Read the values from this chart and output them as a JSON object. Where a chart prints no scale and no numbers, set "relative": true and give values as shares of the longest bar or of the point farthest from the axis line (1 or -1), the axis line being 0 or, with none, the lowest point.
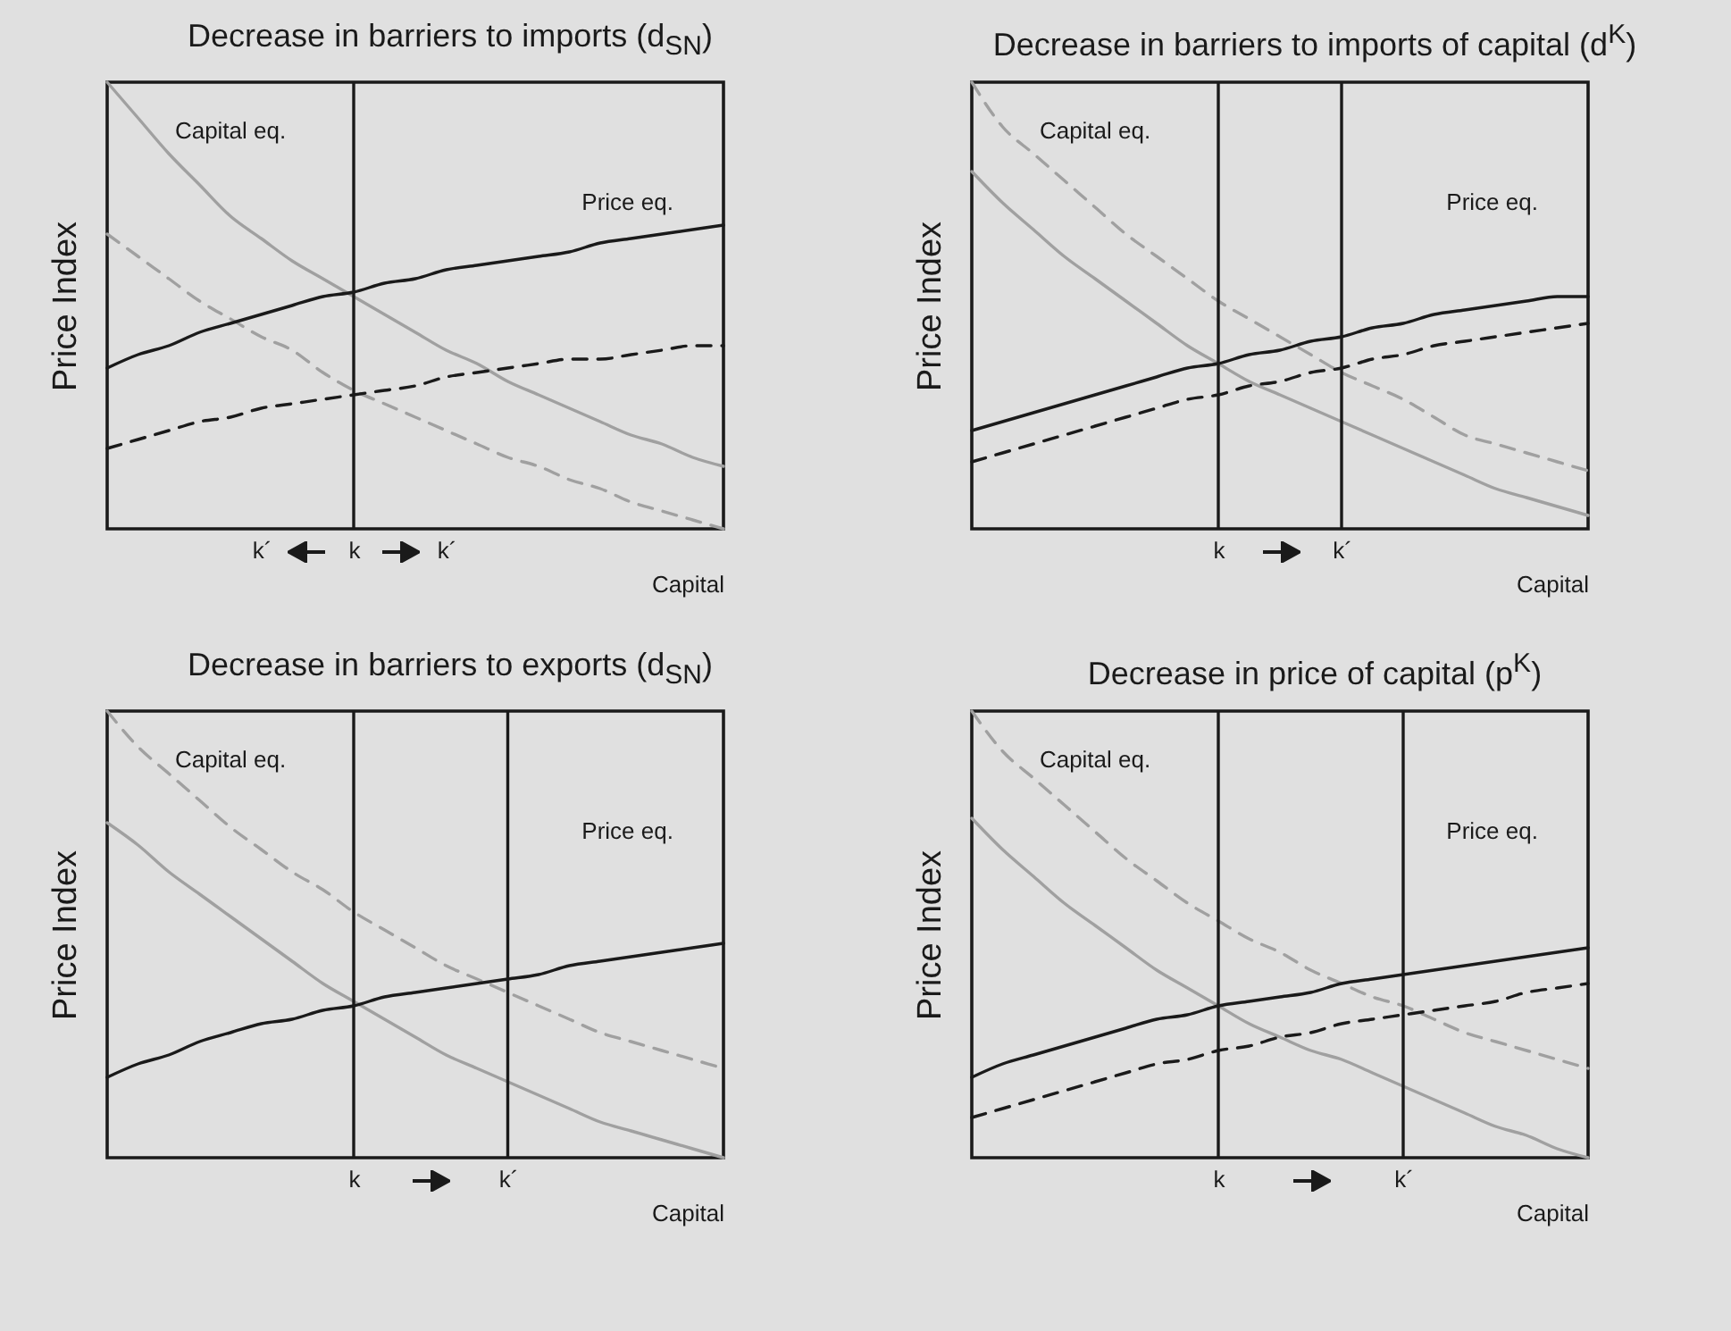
{
  "chart_data": [
    {
      "type": "line",
      "title": "Decrease in barriers to imports (d$_{SN}$)",
      "xlabel": "Capital",
      "ylabel": "Price Index",
      "relative": true,
      "tick_labels": "x",
      "categories": [
        null,
        null,
        null,
        null,
        null,
        "k´",
        null,
        null,
        "k",
        null,
        null,
        "k´",
        null,
        null,
        null,
        null,
        null,
        null,
        null,
        null,
        null
      ],
      "series": [
        {
          "color": "#a0a0a0",
          "line_style": "solid",
          "values": [
            1.0,
            0.92,
            0.84,
            0.77,
            0.7,
            0.65,
            0.6,
            0.56,
            0.52,
            0.48,
            0.44,
            0.4,
            0.37,
            0.33,
            0.3,
            0.27,
            0.24,
            0.21,
            0.19,
            0.16,
            0.14
          ]
        },
        {
          "color": "#a0a0a0",
          "line_style": "dashed",
          "values": [
            0.66,
            0.61,
            0.56,
            0.51,
            0.47,
            0.43,
            0.4,
            0.35,
            0.31,
            0.28,
            0.25,
            0.22,
            0.19,
            0.16,
            0.14,
            0.11,
            0.09,
            0.06,
            0.04,
            0.02,
            0.0
          ]
        },
        {
          "color": "#1a1a1a",
          "line_style": "solid",
          "values": [
            0.36,
            0.39,
            0.41,
            0.44,
            0.46,
            0.48,
            0.5,
            0.52,
            0.53,
            0.55,
            0.56,
            0.58,
            0.59,
            0.6,
            0.61,
            0.62,
            0.64,
            0.65,
            0.66,
            0.67,
            0.68
          ]
        },
        {
          "color": "#1a1a1a",
          "line_style": "dashed",
          "values": [
            0.18,
            0.2,
            0.22,
            0.24,
            0.25,
            0.27,
            0.28,
            0.29,
            0.3,
            0.31,
            0.32,
            0.34,
            0.35,
            0.36,
            0.37,
            0.38,
            0.38,
            0.39,
            0.4,
            0.41,
            0.41
          ]
        }
      ],
      "ref_lines": [
        {
          "axis": "x",
          "value": "k",
          "color": "#1a1a1a"
        }
      ],
      "annotations": [
        "Capital eq.",
        "Price eq."
      ]
    },
    {
      "type": "line",
      "title": "Decrease in barriers to imports of capital (d$^{K}$)",
      "xlabel": "Capital",
      "ylabel": "Price Index",
      "relative": true,
      "tick_labels": "x",
      "categories": [
        null,
        null,
        null,
        null,
        null,
        null,
        null,
        null,
        "k",
        null,
        null,
        null,
        "k´",
        null,
        null,
        null,
        null,
        null,
        null,
        null,
        null
      ],
      "series": [
        {
          "color": "#a0a0a0",
          "line_style": "dashed",
          "values": [
            1.0,
            0.9,
            0.84,
            0.78,
            0.72,
            0.66,
            0.61,
            0.56,
            0.51,
            0.47,
            0.43,
            0.39,
            0.35,
            0.32,
            0.29,
            0.25,
            0.21,
            0.19,
            0.17,
            0.15,
            0.13
          ]
        },
        {
          "color": "#a0a0a0",
          "line_style": "solid",
          "values": [
            0.8,
            0.73,
            0.67,
            0.61,
            0.56,
            0.51,
            0.46,
            0.41,
            0.37,
            0.33,
            0.3,
            0.27,
            0.24,
            0.21,
            0.18,
            0.15,
            0.12,
            0.09,
            0.07,
            0.05,
            0.03
          ]
        },
        {
          "color": "#1a1a1a",
          "line_style": "solid",
          "values": [
            0.22,
            0.24,
            0.26,
            0.28,
            0.3,
            0.32,
            0.34,
            0.36,
            0.37,
            0.39,
            0.4,
            0.42,
            0.43,
            0.45,
            0.46,
            0.48,
            0.49,
            0.5,
            0.51,
            0.52,
            0.52
          ]
        },
        {
          "color": "#1a1a1a",
          "line_style": "dashed",
          "values": [
            0.15,
            0.17,
            0.19,
            0.21,
            0.23,
            0.25,
            0.27,
            0.29,
            0.3,
            0.32,
            0.33,
            0.35,
            0.36,
            0.38,
            0.39,
            0.41,
            0.42,
            0.43,
            0.44,
            0.45,
            0.46
          ]
        }
      ],
      "ref_lines": [
        {
          "axis": "x",
          "value": "k",
          "color": "#1a1a1a"
        },
        {
          "axis": "x",
          "value": "k´",
          "color": "#1a1a1a"
        }
      ],
      "annotations": [
        "Capital eq.",
        "Price eq."
      ]
    },
    {
      "type": "line",
      "title": "Decrease in barriers to exports (d$_{SN}$)",
      "xlabel": "Capital",
      "ylabel": "Price Index",
      "relative": true,
      "tick_labels": "x",
      "categories": [
        null,
        null,
        null,
        null,
        null,
        null,
        null,
        null,
        "k",
        null,
        null,
        null,
        null,
        "k´",
        null,
        null,
        null,
        null,
        null,
        null,
        null
      ],
      "series": [
        {
          "color": "#a0a0a0",
          "line_style": "dashed",
          "values": [
            1.0,
            0.92,
            0.86,
            0.8,
            0.74,
            0.69,
            0.64,
            0.6,
            0.55,
            0.51,
            0.47,
            0.43,
            0.4,
            0.37,
            0.34,
            0.31,
            0.28,
            0.26,
            0.24,
            0.22,
            0.2
          ]
        },
        {
          "color": "#a0a0a0",
          "line_style": "solid",
          "values": [
            0.75,
            0.7,
            0.64,
            0.59,
            0.54,
            0.49,
            0.44,
            0.39,
            0.35,
            0.31,
            0.27,
            0.23,
            0.2,
            0.17,
            0.14,
            0.11,
            0.08,
            0.06,
            0.04,
            0.02,
            0.0
          ]
        },
        {
          "color": "#1a1a1a",
          "line_style": "solid",
          "values": [
            0.18,
            0.21,
            0.23,
            0.26,
            0.28,
            0.3,
            0.31,
            0.33,
            0.34,
            0.36,
            0.37,
            0.38,
            0.39,
            0.4,
            0.41,
            0.43,
            0.44,
            0.45,
            0.46,
            0.47,
            0.48
          ]
        }
      ],
      "ref_lines": [
        {
          "axis": "x",
          "value": "k",
          "color": "#1a1a1a"
        },
        {
          "axis": "x",
          "value": "k´",
          "color": "#1a1a1a"
        }
      ],
      "annotations": [
        "Capital eq.",
        "Price eq."
      ]
    },
    {
      "type": "line",
      "title": "Decrease in price of capital (p$^{K}$)",
      "xlabel": "Capital",
      "ylabel": "Price Index",
      "relative": true,
      "tick_labels": "x",
      "categories": [
        null,
        null,
        null,
        null,
        null,
        null,
        null,
        null,
        "k",
        null,
        null,
        null,
        null,
        null,
        "k´",
        null,
        null,
        null,
        null,
        null,
        null
      ],
      "series": [
        {
          "color": "#a0a0a0",
          "line_style": "dashed",
          "values": [
            1.0,
            0.91,
            0.85,
            0.79,
            0.73,
            0.67,
            0.62,
            0.57,
            0.53,
            0.49,
            0.46,
            0.42,
            0.39,
            0.36,
            0.34,
            0.31,
            0.28,
            0.26,
            0.24,
            0.22,
            0.2
          ]
        },
        {
          "color": "#a0a0a0",
          "line_style": "solid",
          "values": [
            0.76,
            0.69,
            0.63,
            0.57,
            0.52,
            0.47,
            0.42,
            0.38,
            0.34,
            0.3,
            0.27,
            0.24,
            0.22,
            0.19,
            0.16,
            0.13,
            0.1,
            0.07,
            0.05,
            0.02,
            0.0
          ]
        },
        {
          "color": "#1a1a1a",
          "line_style": "solid",
          "values": [
            0.18,
            0.21,
            0.23,
            0.25,
            0.27,
            0.29,
            0.31,
            0.32,
            0.34,
            0.35,
            0.36,
            0.37,
            0.39,
            0.4,
            0.41,
            0.42,
            0.43,
            0.44,
            0.45,
            0.46,
            0.47
          ]
        },
        {
          "color": "#1a1a1a",
          "line_style": "dashed",
          "values": [
            0.09,
            0.11,
            0.13,
            0.15,
            0.17,
            0.19,
            0.21,
            0.22,
            0.24,
            0.25,
            0.27,
            0.28,
            0.3,
            0.31,
            0.32,
            0.33,
            0.34,
            0.35,
            0.37,
            0.38,
            0.39
          ]
        }
      ],
      "ref_lines": [
        {
          "axis": "x",
          "value": "k",
          "color": "#1a1a1a"
        },
        {
          "axis": "x",
          "value": "k´",
          "color": "#1a1a1a"
        }
      ],
      "annotations": [
        "Capital eq.",
        "Price eq."
      ]
    }
  ]
}
